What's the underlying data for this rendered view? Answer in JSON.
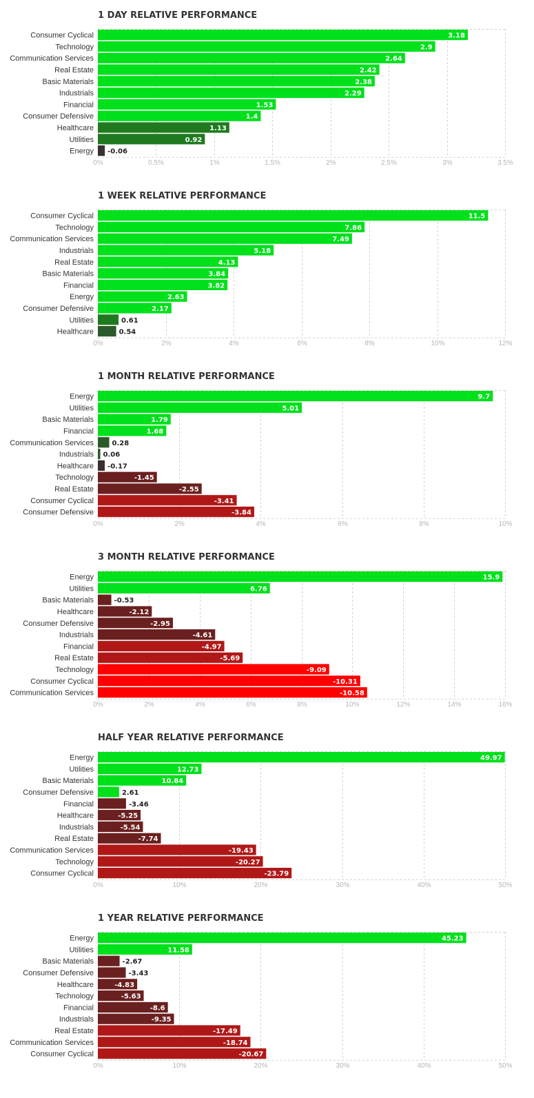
{
  "chart_data": [
    {
      "type": "bar",
      "orientation": "horizontal",
      "title": "1 DAY RELATIVE PERFORMANCE",
      "categories": [
        "Consumer Cyclical",
        "Technology",
        "Communication Services",
        "Real Estate",
        "Basic Materials",
        "Industrials",
        "Financial",
        "Consumer Defensive",
        "Healthcare",
        "Utilities",
        "Energy"
      ],
      "values": [
        3.18,
        2.9,
        2.64,
        2.42,
        2.38,
        2.29,
        1.53,
        1.4,
        1.13,
        0.92,
        -0.06
      ],
      "value_labels": [
        "3.18",
        "2.9",
        "2.64",
        "2.42",
        "2.38",
        "2.29",
        "1.53",
        "1.4",
        "1.13",
        "0.92",
        "-0.06"
      ],
      "xlim": [
        0,
        3.5
      ],
      "ticks": [
        0,
        0.5,
        1,
        1.5,
        2,
        2.5,
        3,
        3.5
      ],
      "tick_labels": [
        "0%",
        "0.5%",
        "1%",
        "1.5%",
        "2%",
        "2.5%",
        "3%",
        "3.5%"
      ],
      "grid": true
    },
    {
      "type": "bar",
      "orientation": "horizontal",
      "title": "1 WEEK RELATIVE PERFORMANCE",
      "categories": [
        "Consumer Cyclical",
        "Technology",
        "Communication Services",
        "Industrials",
        "Real Estate",
        "Basic Materials",
        "Financial",
        "Energy",
        "Consumer Defensive",
        "Utilities",
        "Healthcare"
      ],
      "values": [
        11.5,
        7.86,
        7.49,
        5.18,
        4.13,
        3.84,
        3.82,
        2.63,
        2.17,
        0.61,
        0.54
      ],
      "value_labels": [
        "11.5",
        "7.86",
        "7.49",
        "5.18",
        "4.13",
        "3.84",
        "3.82",
        "2.63",
        "2.17",
        "0.61",
        "0.54"
      ],
      "xlim": [
        0,
        12
      ],
      "ticks": [
        0,
        2,
        4,
        6,
        8,
        10,
        12
      ],
      "tick_labels": [
        "0%",
        "2%",
        "4%",
        "6%",
        "8%",
        "10%",
        "12%"
      ],
      "grid": true
    },
    {
      "type": "bar",
      "orientation": "horizontal",
      "title": "1 MONTH RELATIVE PERFORMANCE",
      "categories": [
        "Energy",
        "Utilities",
        "Basic Materials",
        "Financial",
        "Communication Services",
        "Industrials",
        "Healthcare",
        "Technology",
        "Real Estate",
        "Consumer Cyclical",
        "Consumer Defensive"
      ],
      "values": [
        9.7,
        5.01,
        1.79,
        1.68,
        0.28,
        0.06,
        -0.17,
        -1.45,
        -2.55,
        -3.41,
        -3.84
      ],
      "value_labels": [
        "9.7",
        "5.01",
        "1.79",
        "1.68",
        "0.28",
        "0.06",
        "-0.17",
        "-1.45",
        "-2.55",
        "-3.41",
        "-3.84"
      ],
      "xlim": [
        0,
        10
      ],
      "ticks": [
        0,
        2,
        4,
        6,
        8,
        10
      ],
      "tick_labels": [
        "0%",
        "2%",
        "4%",
        "6%",
        "8%",
        "10%"
      ],
      "grid": true
    },
    {
      "type": "bar",
      "orientation": "horizontal",
      "title": "3 MONTH RELATIVE PERFORMANCE",
      "categories": [
        "Energy",
        "Utilities",
        "Basic Materials",
        "Healthcare",
        "Consumer Defensive",
        "Industrials",
        "Financial",
        "Real Estate",
        "Technology",
        "Consumer Cyclical",
        "Communication Services"
      ],
      "values": [
        15.9,
        6.76,
        -0.53,
        -2.12,
        -2.95,
        -4.61,
        -4.97,
        -5.69,
        -9.09,
        -10.31,
        -10.58
      ],
      "value_labels": [
        "15.9",
        "6.76",
        "-0.53",
        "-2.12",
        "-2.95",
        "-4.61",
        "-4.97",
        "-5.69",
        "-9.09",
        "-10.31",
        "-10.58"
      ],
      "xlim": [
        0,
        16
      ],
      "ticks": [
        0,
        2,
        4,
        6,
        8,
        10,
        12,
        14,
        16
      ],
      "tick_labels": [
        "0%",
        "2%",
        "4%",
        "6%",
        "8%",
        "10%",
        "12%",
        "14%",
        "16%"
      ],
      "grid": true
    },
    {
      "type": "bar",
      "orientation": "horizontal",
      "title": "HALF YEAR RELATIVE PERFORMANCE",
      "categories": [
        "Energy",
        "Utilities",
        "Basic Materials",
        "Consumer Defensive",
        "Financial",
        "Healthcare",
        "Industrials",
        "Real Estate",
        "Communication Services",
        "Technology",
        "Consumer Cyclical"
      ],
      "values": [
        49.97,
        12.73,
        10.84,
        2.61,
        -3.46,
        -5.25,
        -5.54,
        -7.74,
        -19.43,
        -20.27,
        -23.79
      ],
      "value_labels": [
        "49.97",
        "12.73",
        "10.84",
        "2.61",
        "-3.46",
        "-5.25",
        "-5.54",
        "-7.74",
        "-19.43",
        "-20.27",
        "-23.79"
      ],
      "xlim": [
        0,
        50
      ],
      "ticks": [
        0,
        10,
        20,
        30,
        40,
        50
      ],
      "tick_labels": [
        "0%",
        "10%",
        "20%",
        "30%",
        "40%",
        "50%"
      ],
      "grid": true
    },
    {
      "type": "bar",
      "orientation": "horizontal",
      "title": "1 YEAR RELATIVE PERFORMANCE",
      "categories": [
        "Energy",
        "Utilities",
        "Basic Materials",
        "Consumer Defensive",
        "Healthcare",
        "Technology",
        "Financial",
        "Industrials",
        "Real Estate",
        "Communication Services",
        "Consumer Cyclical"
      ],
      "values": [
        45.23,
        11.58,
        -2.67,
        -3.43,
        -4.83,
        -5.63,
        -8.6,
        -9.35,
        -17.49,
        -18.74,
        -20.67
      ],
      "value_labels": [
        "45.23",
        "11.58",
        "-2.67",
        "-3.43",
        "-4.83",
        "-5.63",
        "-8.6",
        "-9.35",
        "-17.49",
        "-18.74",
        "-20.67"
      ],
      "xlim": [
        0,
        50
      ],
      "ticks": [
        0,
        10,
        20,
        30,
        40,
        50
      ],
      "tick_labels": [
        "0%",
        "10%",
        "20%",
        "30%",
        "40%",
        "50%"
      ],
      "grid": true
    }
  ],
  "colors": {
    "positive_bright": "#00e01b",
    "positive_dark": "#1f7a1f",
    "positive_darker": "#2a5a2a",
    "neutral": "#3a3030",
    "negative_dark": "#6b2020",
    "negative_mid": "#b01818",
    "negative_bright": "#ff0000",
    "grid": "#d0d0d0",
    "tick_text": "#b5b5b5",
    "label_text": "#333333"
  }
}
